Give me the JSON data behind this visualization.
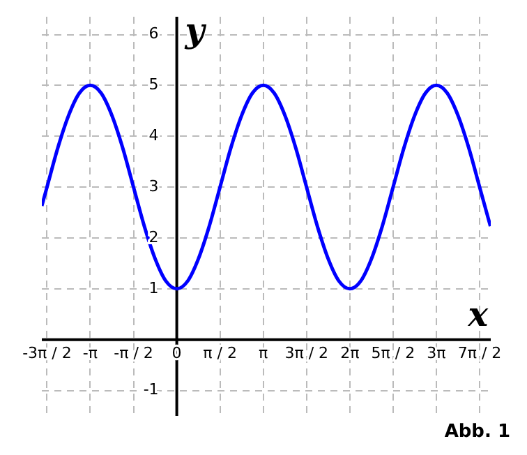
{
  "chart_data": {
    "type": "line",
    "xlabel": "x",
    "ylabel": "y",
    "annotations": [
      "Abb. 1"
    ],
    "series": [
      {
        "color": "#0000ff",
        "x": [
          -4.9,
          -4.712,
          -4.32,
          -3.927,
          -3.534,
          -3.142,
          -2.749,
          -2.356,
          -1.963,
          -1.571,
          -1.178,
          -0.785,
          -0.393,
          0,
          0.393,
          0.785,
          1.178,
          1.571,
          1.963,
          2.356,
          2.749,
          3.142,
          3.534,
          3.927,
          4.32,
          4.712,
          5.105,
          5.498,
          5.89,
          6.283,
          6.676,
          7.069,
          7.461,
          7.854,
          8.247,
          8.639,
          9.032,
          9.425,
          9.817,
          10.21,
          10.603,
          10.996,
          11.388
        ],
        "values": [
          2.63,
          3,
          3.77,
          4.41,
          4.85,
          5,
          4.85,
          4.41,
          3.77,
          3,
          2.23,
          1.59,
          1.15,
          1,
          1.15,
          1.59,
          2.23,
          3,
          3.77,
          4.41,
          4.85,
          5,
          4.85,
          4.41,
          3.77,
          3,
          2.23,
          1.59,
          1.15,
          1,
          1.15,
          1.59,
          2.23,
          3,
          3.77,
          4.41,
          4.85,
          5,
          4.85,
          4.41,
          3.77,
          3,
          2.23
        ]
      }
    ],
    "xlim": [
      -4.9,
      11.4
    ],
    "ylim": [
      -1.5,
      6.35
    ],
    "xticks": [
      {
        "value": -4.712,
        "label": "-3π / 2"
      },
      {
        "value": -3.142,
        "label": "-π"
      },
      {
        "value": -1.571,
        "label": "-π / 2"
      },
      0,
      {
        "value": 1.571,
        "label": "π / 2"
      },
      {
        "value": 3.142,
        "label": "π"
      },
      {
        "value": 4.712,
        "label": "3π / 2"
      },
      {
        "value": 6.283,
        "label": "2π"
      },
      {
        "value": 7.854,
        "label": "5π / 2"
      },
      {
        "value": 9.425,
        "label": "3π"
      },
      {
        "value": 10.996,
        "label": "7π / 2"
      }
    ],
    "yticks": [
      -1,
      {
        "value": 0,
        "label": null
      },
      1,
      2,
      3,
      4,
      5,
      6
    ],
    "grid": true,
    "marker": "none",
    "line_style": "solid"
  }
}
